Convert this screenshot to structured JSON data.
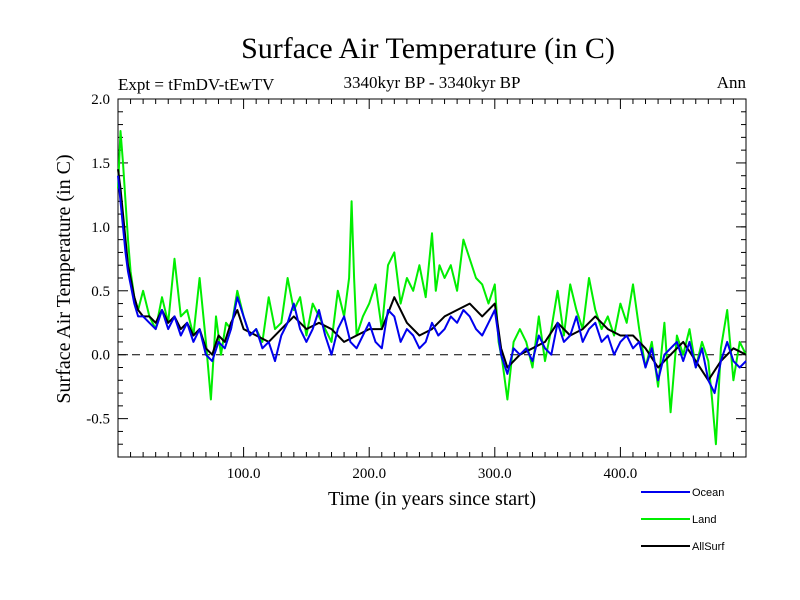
{
  "chart_data": {
    "type": "line",
    "title": "Surface Air Temperature (in C)",
    "subtitle": "3340kyr BP - 3340kyr BP",
    "left_annotation": "Expt = tFmDV-tEwTV",
    "right_annotation": "Ann",
    "xlabel": "Time (in years since start)",
    "ylabel": "Surface Air Temperature (in C)",
    "xlim": [
      0,
      500
    ],
    "ylim": [
      -0.8,
      2.0
    ],
    "xticks": [
      100,
      200,
      300,
      400
    ],
    "xtick_labels": [
      "100.0",
      "200.0",
      "300.0",
      "400.0"
    ],
    "yticks": [
      -0.5,
      0.0,
      0.5,
      1.0,
      1.5,
      2.0
    ],
    "ytick_labels": [
      "-0.5",
      "0.0",
      "0.5",
      "1.0",
      "1.5",
      "2.0"
    ],
    "reference_line": 0.0,
    "series": [
      {
        "name": "Land",
        "color": "#00ee00",
        "x": [
          0,
          2,
          4,
          6,
          8,
          10,
          13,
          16,
          20,
          25,
          30,
          35,
          40,
          45,
          50,
          55,
          60,
          65,
          70,
          74,
          78,
          82,
          86,
          90,
          95,
          100,
          105,
          110,
          115,
          120,
          125,
          130,
          135,
          140,
          145,
          150,
          155,
          160,
          165,
          170,
          175,
          180,
          184,
          186,
          188,
          190,
          195,
          200,
          205,
          210,
          215,
          220,
          225,
          230,
          235,
          240,
          245,
          250,
          253,
          256,
          260,
          265,
          270,
          275,
          280,
          285,
          290,
          295,
          300,
          303,
          306,
          310,
          315,
          320,
          325,
          330,
          335,
          340,
          345,
          350,
          355,
          360,
          365,
          370,
          375,
          380,
          385,
          390,
          395,
          400,
          405,
          410,
          415,
          420,
          425,
          430,
          435,
          440,
          445,
          450,
          455,
          460,
          465,
          470,
          473,
          476,
          480,
          485,
          490,
          495,
          500
        ],
        "values": [
          1.3,
          1.75,
          1.5,
          1.2,
          0.9,
          0.65,
          0.45,
          0.35,
          0.5,
          0.3,
          0.2,
          0.45,
          0.25,
          0.75,
          0.3,
          0.35,
          0.15,
          0.6,
          0.1,
          -0.35,
          0.3,
          0.0,
          0.25,
          0.2,
          0.5,
          0.3,
          0.15,
          0.2,
          0.1,
          0.45,
          0.2,
          0.25,
          0.6,
          0.35,
          0.45,
          0.15,
          0.4,
          0.3,
          0.2,
          0.1,
          0.5,
          0.3,
          0.6,
          1.2,
          0.6,
          0.15,
          0.3,
          0.4,
          0.55,
          0.2,
          0.7,
          0.8,
          0.4,
          0.6,
          0.5,
          0.7,
          0.45,
          0.95,
          0.5,
          0.7,
          0.6,
          0.7,
          0.5,
          0.9,
          0.75,
          0.6,
          0.55,
          0.4,
          0.55,
          0.1,
          -0.05,
          -0.35,
          0.1,
          0.2,
          0.1,
          -0.1,
          0.3,
          -0.05,
          0.2,
          0.5,
          0.15,
          0.55,
          0.35,
          0.2,
          0.6,
          0.35,
          0.2,
          0.3,
          0.15,
          0.4,
          0.25,
          0.55,
          0.2,
          -0.1,
          0.1,
          -0.25,
          0.25,
          -0.45,
          0.15,
          0.0,
          0.2,
          -0.1,
          0.1,
          -0.05,
          -0.35,
          -0.7,
          0.05,
          0.35,
          -0.2,
          0.1,
          0.0
        ]
      },
      {
        "name": "AllSurf",
        "color": "#000000",
        "x": [
          0,
          2,
          4,
          6,
          8,
          10,
          13,
          16,
          20,
          25,
          30,
          35,
          40,
          45,
          50,
          55,
          60,
          65,
          70,
          75,
          80,
          85,
          90,
          95,
          100,
          110,
          120,
          130,
          140,
          150,
          160,
          170,
          180,
          190,
          200,
          210,
          220,
          230,
          240,
          250,
          260,
          270,
          280,
          290,
          300,
          305,
          310,
          320,
          330,
          340,
          350,
          360,
          370,
          380,
          390,
          400,
          410,
          420,
          430,
          440,
          450,
          460,
          470,
          480,
          490,
          500
        ],
        "values": [
          1.45,
          1.3,
          1.1,
          0.9,
          0.7,
          0.6,
          0.45,
          0.35,
          0.3,
          0.3,
          0.25,
          0.35,
          0.25,
          0.3,
          0.2,
          0.25,
          0.15,
          0.2,
          0.05,
          0.0,
          0.15,
          0.1,
          0.25,
          0.35,
          0.2,
          0.15,
          0.1,
          0.2,
          0.3,
          0.2,
          0.25,
          0.2,
          0.1,
          0.15,
          0.2,
          0.2,
          0.45,
          0.25,
          0.15,
          0.2,
          0.3,
          0.35,
          0.4,
          0.3,
          0.4,
          0.05,
          -0.1,
          0.0,
          0.05,
          0.1,
          0.25,
          0.15,
          0.2,
          0.3,
          0.2,
          0.15,
          0.15,
          0.05,
          -0.1,
          0.0,
          0.1,
          -0.05,
          -0.2,
          -0.05,
          0.05,
          0.0
        ]
      },
      {
        "name": "Ocean",
        "color": "#0000ee",
        "x": [
          0,
          2,
          4,
          6,
          8,
          10,
          13,
          16,
          20,
          25,
          30,
          35,
          40,
          45,
          50,
          55,
          60,
          65,
          70,
          75,
          80,
          85,
          90,
          95,
          100,
          105,
          110,
          115,
          120,
          125,
          130,
          135,
          140,
          145,
          150,
          155,
          160,
          165,
          170,
          175,
          180,
          185,
          190,
          195,
          200,
          205,
          210,
          215,
          220,
          225,
          230,
          235,
          240,
          245,
          250,
          255,
          260,
          265,
          270,
          275,
          280,
          285,
          290,
          295,
          300,
          305,
          310,
          315,
          320,
          325,
          330,
          335,
          340,
          345,
          350,
          355,
          360,
          365,
          370,
          375,
          380,
          385,
          390,
          395,
          400,
          405,
          410,
          415,
          420,
          425,
          430,
          435,
          440,
          445,
          450,
          455,
          460,
          465,
          470,
          475,
          480,
          485,
          490,
          495,
          500
        ],
        "values": [
          1.4,
          1.2,
          1.0,
          0.8,
          0.65,
          0.55,
          0.4,
          0.3,
          0.3,
          0.25,
          0.2,
          0.35,
          0.2,
          0.3,
          0.15,
          0.25,
          0.1,
          0.2,
          0.0,
          -0.05,
          0.1,
          0.05,
          0.2,
          0.45,
          0.3,
          0.15,
          0.2,
          0.05,
          0.1,
          -0.05,
          0.15,
          0.25,
          0.4,
          0.2,
          0.1,
          0.2,
          0.35,
          0.15,
          0.0,
          0.2,
          0.3,
          0.1,
          0.05,
          0.15,
          0.25,
          0.1,
          0.05,
          0.35,
          0.3,
          0.1,
          0.2,
          0.15,
          0.05,
          0.1,
          0.25,
          0.15,
          0.2,
          0.3,
          0.25,
          0.35,
          0.3,
          0.2,
          0.15,
          0.25,
          0.35,
          0.0,
          -0.15,
          0.05,
          0.0,
          0.05,
          -0.05,
          0.15,
          0.05,
          0.0,
          0.25,
          0.1,
          0.15,
          0.3,
          0.1,
          0.2,
          0.25,
          0.1,
          0.15,
          0.0,
          0.1,
          0.15,
          0.05,
          0.1,
          -0.1,
          0.05,
          -0.2,
          0.0,
          0.05,
          0.1,
          -0.05,
          0.1,
          -0.1,
          0.05,
          -0.2,
          -0.3,
          -0.05,
          0.1,
          -0.05,
          -0.1,
          -0.05
        ]
      }
    ],
    "legend": [
      "Ocean",
      "Land",
      "AllSurf"
    ],
    "legend_position": "bottom-right",
    "grid": false
  }
}
